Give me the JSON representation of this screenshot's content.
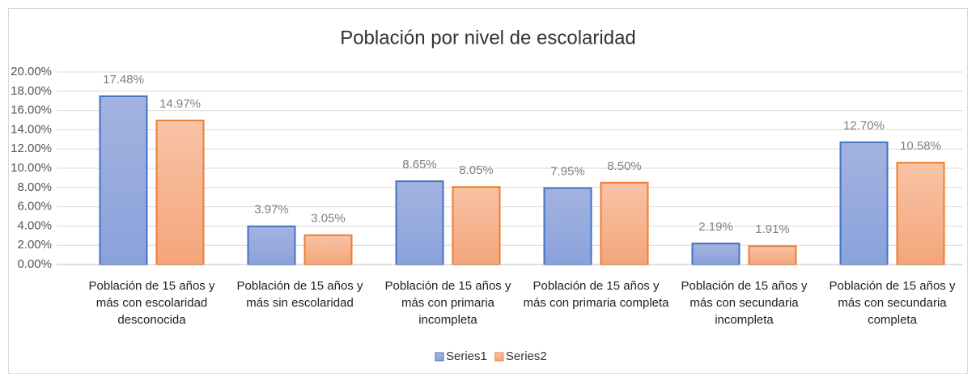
{
  "chart_data": {
    "type": "bar",
    "title": "Población por nivel de escolaridad",
    "categories": [
      "Población de 15 años y más con escolaridad desconocida",
      "Población de 15 años y más sin escolaridad",
      "Población de 15 años y más con primaria incompleta",
      "Población de 15 años y más con primaria completa",
      "Población de 15 años y más con secundaria incompleta",
      "Población de 15 años y más con secundaria completa"
    ],
    "series": [
      {
        "name": "Series1",
        "color": "#4472c4",
        "values": [
          17.48,
          3.97,
          8.65,
          7.95,
          2.19,
          12.7
        ],
        "value_labels": [
          "17.48%",
          "3.97%",
          "8.65%",
          "7.95%",
          "2.19%",
          "12.70%"
        ]
      },
      {
        "name": "Series2",
        "color": "#ed7d31",
        "values": [
          14.97,
          3.05,
          8.05,
          8.5,
          1.91,
          10.58
        ],
        "value_labels": [
          "14.97%",
          "3.05%",
          "8.05%",
          "8.50%",
          "1.91%",
          "10.58%"
        ]
      }
    ],
    "ylim": [
      0,
      20
    ],
    "yticks": [
      {
        "value": 0,
        "label": "0.00%"
      },
      {
        "value": 2,
        "label": "2.00%"
      },
      {
        "value": 4,
        "label": "4.00%"
      },
      {
        "value": 6,
        "label": "6.00%"
      },
      {
        "value": 8,
        "label": "8.00%"
      },
      {
        "value": 10,
        "label": "10.00%"
      },
      {
        "value": 12,
        "label": "12.00%"
      },
      {
        "value": 14,
        "label": "14.00%"
      },
      {
        "value": 16,
        "label": "16.00%"
      },
      {
        "value": 18,
        "label": "18.00%"
      },
      {
        "value": 20,
        "label": "20.00%"
      }
    ],
    "grid": true,
    "legend": "bottom"
  }
}
